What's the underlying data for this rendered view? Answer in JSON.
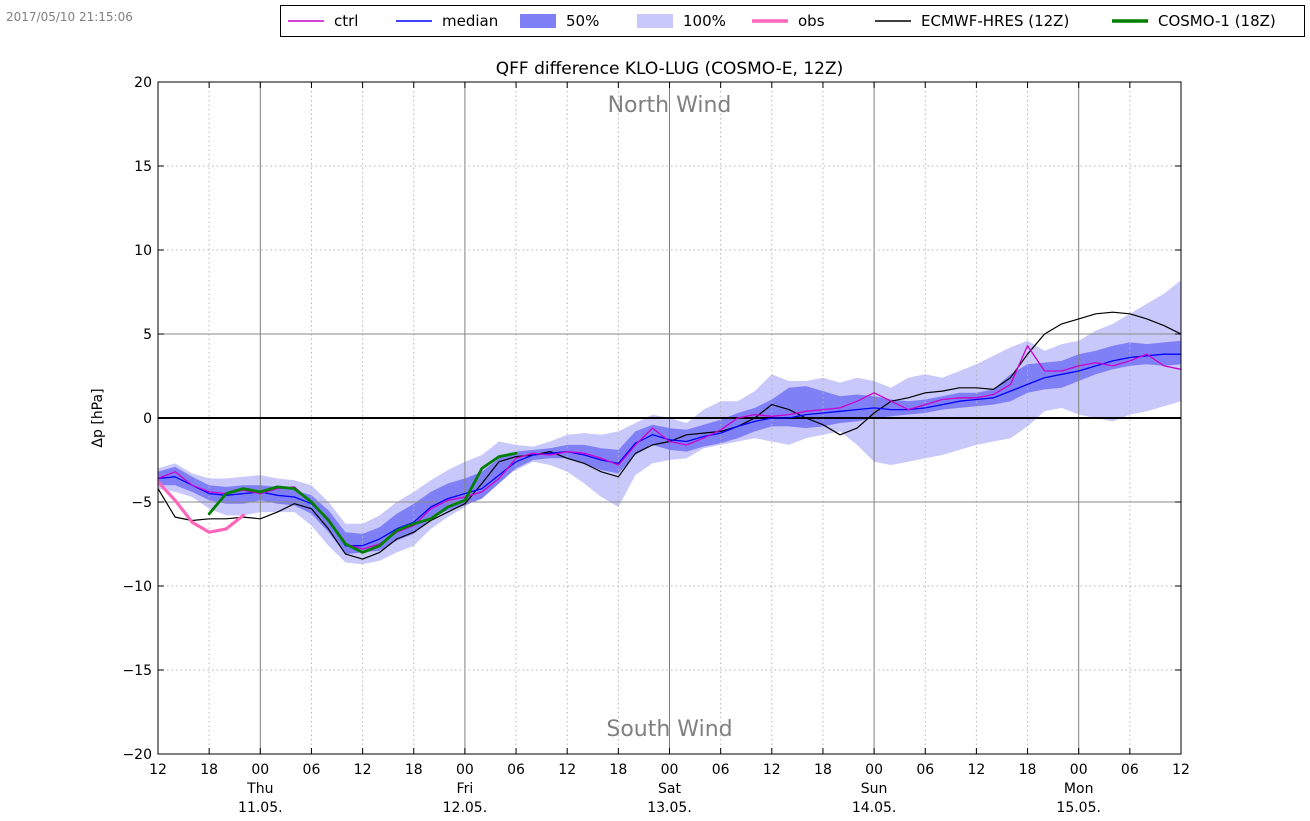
{
  "timestamp": "2017/05/10 21:15:06",
  "chart_data": {
    "type": "line",
    "title": "QFF difference KLO-LUG (COSMO-E, 12Z)",
    "ylabel": "Δp [hPa]",
    "xlabel": "",
    "xlim": [
      0,
      120
    ],
    "ylim": [
      -20,
      20
    ],
    "grid": true,
    "legend_position": "top",
    "annotations": {
      "top": "North Wind",
      "bottom": "South Wind"
    },
    "y_ticks": [
      {
        "v": 20,
        "label": "20"
      },
      {
        "v": 15,
        "label": "15"
      },
      {
        "v": 10,
        "label": "10"
      },
      {
        "v": 5,
        "label": "5"
      },
      {
        "v": 0,
        "label": "0"
      },
      {
        "v": -5,
        "label": "−5"
      },
      {
        "v": -10,
        "label": "−10"
      },
      {
        "v": -15,
        "label": "−15"
      },
      {
        "v": -20,
        "label": "−20"
      }
    ],
    "x_ticks": [
      {
        "h": 0,
        "label": "12"
      },
      {
        "h": 6,
        "label": "18"
      },
      {
        "h": 12,
        "label": "00"
      },
      {
        "h": 18,
        "label": "06"
      },
      {
        "h": 24,
        "label": "12"
      },
      {
        "h": 30,
        "label": "18"
      },
      {
        "h": 36,
        "label": "00"
      },
      {
        "h": 42,
        "label": "06"
      },
      {
        "h": 48,
        "label": "12"
      },
      {
        "h": 54,
        "label": "18"
      },
      {
        "h": 60,
        "label": "00"
      },
      {
        "h": 66,
        "label": "06"
      },
      {
        "h": 72,
        "label": "12"
      },
      {
        "h": 78,
        "label": "18"
      },
      {
        "h": 84,
        "label": "00"
      },
      {
        "h": 90,
        "label": "06"
      },
      {
        "h": 96,
        "label": "12"
      },
      {
        "h": 102,
        "label": "18"
      },
      {
        "h": 108,
        "label": "00"
      },
      {
        "h": 114,
        "label": "06"
      },
      {
        "h": 120,
        "label": "12"
      }
    ],
    "day_labels": [
      {
        "h": 12,
        "day": "Thu",
        "date": "11.05."
      },
      {
        "h": 36,
        "day": "Fri",
        "date": "12.05."
      },
      {
        "h": 60,
        "day": "Sat",
        "date": "13.05."
      },
      {
        "h": 84,
        "day": "Sun",
        "date": "14.05."
      },
      {
        "h": 108,
        "day": "Mon",
        "date": "15.05."
      }
    ],
    "x": [
      0,
      2,
      4,
      6,
      8,
      10,
      12,
      14,
      16,
      18,
      20,
      22,
      24,
      26,
      28,
      30,
      32,
      34,
      36,
      38,
      40,
      42,
      44,
      46,
      48,
      50,
      52,
      54,
      56,
      58,
      60,
      62,
      64,
      66,
      68,
      70,
      72,
      74,
      76,
      78,
      80,
      82,
      84,
      86,
      88,
      90,
      92,
      94,
      96,
      98,
      100,
      102,
      104,
      106,
      108,
      110,
      112,
      114,
      116,
      118,
      120
    ],
    "series": [
      {
        "name": "ctrl",
        "color": "#cc00cc",
        "width": 1.3,
        "values": [
          -3.6,
          -3.2,
          -4.0,
          -4.4,
          -4.5,
          -4.3,
          -4.5,
          -4.2,
          -4.1,
          -5.0,
          -6.0,
          -7.5,
          -7.8,
          -7.5,
          -6.8,
          -6.4,
          -5.4,
          -4.9,
          -4.7,
          -4.4,
          -3.6,
          -2.4,
          -2.1,
          -2.2,
          -2.0,
          -2.1,
          -2.4,
          -2.8,
          -1.6,
          -0.6,
          -1.4,
          -1.6,
          -1.2,
          -0.7,
          0.0,
          0.2,
          0.1,
          0.2,
          0.4,
          0.5,
          0.6,
          1.0,
          1.5,
          1.0,
          0.5,
          0.8,
          1.1,
          1.2,
          1.2,
          1.4,
          2.0,
          4.3,
          2.8,
          2.8,
          3.1,
          3.3,
          3.1,
          3.4,
          3.8,
          3.1,
          2.9
        ]
      },
      {
        "name": "median",
        "color": "#0000ff",
        "width": 1.3,
        "values": [
          -3.6,
          -3.5,
          -4.0,
          -4.5,
          -4.6,
          -4.5,
          -4.4,
          -4.6,
          -4.7,
          -5.1,
          -6.1,
          -7.6,
          -7.6,
          -7.2,
          -6.6,
          -6.2,
          -5.3,
          -4.8,
          -4.5,
          -4.2,
          -3.4,
          -2.6,
          -2.2,
          -2.1,
          -2.0,
          -2.2,
          -2.5,
          -2.7,
          -1.5,
          -1.0,
          -1.3,
          -1.4,
          -1.1,
          -0.9,
          -0.5,
          -0.2,
          0.0,
          0.0,
          0.2,
          0.3,
          0.4,
          0.5,
          0.6,
          0.5,
          0.5,
          0.6,
          0.8,
          1.0,
          1.1,
          1.2,
          1.6,
          2.0,
          2.4,
          2.6,
          2.8,
          3.1,
          3.4,
          3.6,
          3.7,
          3.8,
          3.8
        ]
      },
      {
        "name": "ECMWF-HRES (12Z)",
        "color": "#000000",
        "width": 1.2,
        "values": [
          -4.2,
          -5.9,
          -6.1,
          -6.0,
          -6.0,
          -5.9,
          -6.0,
          -5.6,
          -5.1,
          -5.4,
          -6.6,
          -8.1,
          -8.4,
          -8.0,
          -7.2,
          -6.8,
          -6.1,
          -5.6,
          -5.1,
          -3.9,
          -2.6,
          -2.3,
          -2.2,
          -2.0,
          -2.4,
          -2.7,
          -3.2,
          -3.5,
          -2.1,
          -1.6,
          -1.4,
          -1.0,
          -0.9,
          -0.8,
          -0.5,
          0.0,
          0.8,
          0.5,
          0.0,
          -0.4,
          -1.0,
          -0.6,
          0.3,
          1.0,
          1.2,
          1.5,
          1.6,
          1.8,
          1.8,
          1.7,
          2.4,
          3.8,
          5.0,
          5.6,
          5.9,
          6.2,
          6.3,
          6.2,
          5.9,
          5.5,
          5.0
        ]
      },
      {
        "name": "obs",
        "color": "#ff66bb",
        "width": 3.2,
        "values": [
          -3.8,
          -4.9,
          -6.2,
          -6.8,
          -6.6,
          -5.8,
          null,
          null,
          null,
          null,
          null,
          null,
          null,
          null,
          null,
          null,
          null,
          null,
          null,
          null,
          null,
          null,
          null,
          null,
          null,
          null,
          null,
          null,
          null,
          null,
          null,
          null,
          null,
          null,
          null,
          null,
          null,
          null,
          null,
          null,
          null,
          null,
          null,
          null,
          null,
          null,
          null,
          null,
          null,
          null,
          null,
          null,
          null,
          null,
          null,
          null,
          null,
          null,
          null,
          null,
          null
        ]
      },
      {
        "name": "COSMO-1 (18Z)",
        "color": "#008000",
        "width": 2.8,
        "values": [
          null,
          null,
          null,
          -5.7,
          -4.5,
          -4.2,
          -4.4,
          -4.1,
          -4.2,
          -5.0,
          -6.1,
          -7.5,
          -8.0,
          -7.6,
          -6.7,
          -6.3,
          -6.0,
          -5.3,
          -4.9,
          -3.0,
          -2.3,
          -2.1,
          null,
          null,
          null,
          null,
          null,
          null,
          null,
          null,
          null,
          null,
          null,
          null,
          null,
          null,
          null,
          null,
          null,
          null,
          null,
          null,
          null,
          null,
          null,
          null,
          null,
          null,
          null,
          null,
          null,
          null,
          null,
          null,
          null,
          null,
          null,
          null,
          null,
          null,
          null
        ]
      }
    ],
    "bands": [
      {
        "name": "100%",
        "color": "#c8c8fa",
        "upper": [
          -3.0,
          -2.7,
          -3.3,
          -3.6,
          -3.6,
          -3.5,
          -3.4,
          -3.6,
          -3.7,
          -4.0,
          -5.0,
          -6.3,
          -6.3,
          -5.8,
          -5.0,
          -4.4,
          -3.7,
          -3.1,
          -2.6,
          -2.2,
          -1.4,
          -1.6,
          -1.7,
          -1.4,
          -1.0,
          -0.9,
          -1.0,
          -0.8,
          -0.3,
          0.2,
          0.0,
          -0.3,
          0.5,
          1.0,
          1.0,
          1.6,
          2.6,
          2.2,
          2.2,
          2.4,
          2.1,
          2.4,
          2.2,
          1.8,
          2.4,
          2.6,
          2.4,
          2.8,
          3.2,
          3.7,
          4.2,
          4.6,
          4.0,
          4.4,
          4.6,
          5.2,
          5.6,
          6.2,
          6.8,
          7.4,
          8.2
        ],
        "lower": [
          -4.2,
          -4.4,
          -4.7,
          -5.4,
          -5.8,
          -5.8,
          -5.6,
          -5.6,
          -5.6,
          -6.4,
          -7.6,
          -8.6,
          -8.7,
          -8.5,
          -8.0,
          -7.6,
          -6.6,
          -5.9,
          -5.3,
          -4.5,
          -3.4,
          -3.1,
          -2.6,
          -2.8,
          -3.2,
          -3.9,
          -4.7,
          -5.3,
          -3.4,
          -2.7,
          -2.5,
          -2.4,
          -1.8,
          -1.6,
          -1.4,
          -1.2,
          -1.4,
          -1.6,
          -1.2,
          -1.0,
          -0.8,
          -1.6,
          -2.6,
          -2.8,
          -2.6,
          -2.4,
          -2.2,
          -1.9,
          -1.6,
          -1.4,
          -1.2,
          -0.5,
          0.4,
          0.6,
          0.2,
          0.0,
          -0.2,
          0.2,
          0.4,
          0.7,
          1.0
        ]
      },
      {
        "name": "50%",
        "color": "#8080f6",
        "upper": [
          -3.2,
          -2.9,
          -3.5,
          -4.0,
          -4.1,
          -4.0,
          -4.0,
          -4.1,
          -4.3,
          -4.6,
          -5.5,
          -6.8,
          -6.9,
          -6.5,
          -5.7,
          -5.1,
          -4.4,
          -3.9,
          -3.6,
          -3.2,
          -2.4,
          -2.0,
          -1.9,
          -1.8,
          -1.6,
          -1.6,
          -1.8,
          -1.9,
          -0.8,
          -0.4,
          -0.6,
          -0.7,
          -0.4,
          -0.1,
          0.3,
          0.6,
          1.1,
          1.8,
          1.9,
          1.6,
          1.3,
          1.4,
          1.3,
          1.1,
          1.0,
          1.1,
          1.3,
          1.5,
          1.5,
          1.7,
          2.6,
          3.2,
          3.3,
          3.4,
          3.8,
          4.0,
          4.3,
          4.5,
          4.4,
          4.5,
          4.6
        ],
        "lower": [
          -4.0,
          -4.0,
          -4.4,
          -4.9,
          -5.1,
          -5.1,
          -4.9,
          -5.1,
          -5.2,
          -5.7,
          -6.8,
          -8.1,
          -8.0,
          -7.9,
          -7.3,
          -6.9,
          -6.0,
          -5.5,
          -5.2,
          -4.8,
          -3.9,
          -3.0,
          -2.5,
          -2.4,
          -2.4,
          -2.7,
          -3.1,
          -3.3,
          -2.2,
          -1.6,
          -1.9,
          -2.0,
          -1.7,
          -1.5,
          -1.2,
          -0.8,
          -0.5,
          -0.5,
          -0.6,
          -0.5,
          -0.3,
          -0.2,
          0.0,
          0.1,
          0.2,
          0.3,
          0.5,
          0.6,
          0.7,
          0.8,
          1.0,
          1.5,
          1.7,
          1.8,
          2.2,
          2.6,
          2.9,
          3.1,
          3.2,
          3.1,
          3.2
        ]
      }
    ],
    "legend": [
      {
        "name": "ctrl",
        "kind": "line",
        "color": "#cc00cc"
      },
      {
        "name": "median",
        "kind": "line",
        "color": "#0000ff"
      },
      {
        "name": "50%",
        "kind": "patch",
        "color": "#8080f6"
      },
      {
        "name": "100%",
        "kind": "patch",
        "color": "#c8c8fa"
      },
      {
        "name": "obs",
        "kind": "thick",
        "color": "#ff66bb"
      },
      {
        "name": "ECMWF-HRES (12Z)",
        "kind": "line",
        "color": "#000000"
      },
      {
        "name": "COSMO-1 (18Z)",
        "kind": "thick",
        "color": "#008000"
      }
    ]
  }
}
